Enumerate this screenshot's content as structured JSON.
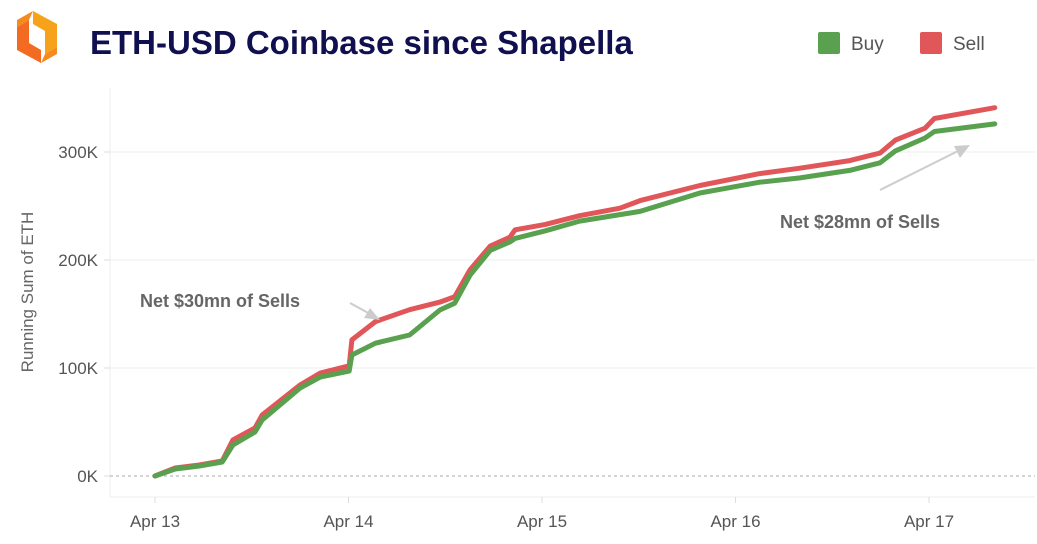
{
  "logo": {
    "name": "orange-hexagon-logo",
    "colors": [
      "#f7a21b",
      "#f26b21"
    ]
  },
  "chart_data": {
    "type": "line",
    "title": "ETH-USD Coinbase since Shapella",
    "xlabel": "",
    "ylabel": "Running Sum of ETH",
    "x_ticks": [
      "Apr 13",
      "Apr 14",
      "Apr 15",
      "Apr 16",
      "Apr 17"
    ],
    "y_ticks": [
      "0K",
      "100K",
      "200K",
      "300K"
    ],
    "ylim": [
      0,
      350000
    ],
    "grid": true,
    "legend": {
      "placement": "top-right",
      "entries": [
        "Buy",
        "Sell"
      ]
    },
    "x": [
      "Apr 13 00:00",
      "Apr 13 02:30",
      "Apr 13 05:30",
      "Apr 13 08:20",
      "Apr 13 09:40",
      "Apr 13 12:24",
      "Apr 13 13:18",
      "Apr 13 18:00",
      "Apr 13 20:30",
      "Apr 14 00:05",
      "Apr 14 00:25",
      "Apr 14 03:20",
      "Apr 14 07:35",
      "Apr 14 11:20",
      "Apr 14 13:10",
      "Apr 14 15:05",
      "Apr 14 17:35",
      "Apr 14 20:00",
      "Apr 14 20:40",
      "Apr 15 00:25",
      "Apr 15 04:40",
      "Apr 15 09:40",
      "Apr 15 12:10",
      "Apr 15 19:35",
      "Apr 16 03:00",
      "Apr 16 08:00",
      "Apr 16 14:10",
      "Apr 16 17:55",
      "Apr 16 19:50",
      "Apr 16 23:30",
      "Apr 17 00:40",
      "Apr 17 08:10"
    ],
    "series": [
      {
        "name": "Buy",
        "color": "#59a14f",
        "values": [
          0,
          6500,
          9300,
          13000,
          28700,
          40700,
          51900,
          81500,
          91700,
          97200,
          112000,
          123000,
          130600,
          153700,
          160000,
          186000,
          209000,
          216700,
          220000,
          227000,
          236000,
          242000,
          245000,
          262000,
          272000,
          276000,
          283000,
          290000,
          301000,
          313000,
          319000,
          326000
        ]
      },
      {
        "name": "Sell",
        "color": "#e15759",
        "values": [
          0,
          7400,
          10200,
          13900,
          33300,
          44400,
          56500,
          84300,
          95400,
          102000,
          126000,
          143000,
          154000,
          161000,
          166000,
          191000,
          213000,
          221000,
          228000,
          233000,
          241000,
          248000,
          255000,
          269000,
          280000,
          285000,
          292000,
          299000,
          311000,
          322000,
          331000,
          341000
        ]
      }
    ],
    "annotations": [
      {
        "text": "Net $30mn of Sells",
        "points_to": "Apr 14"
      },
      {
        "text": "Net $28mn of Sells",
        "points_to": "Apr 17"
      }
    ]
  }
}
